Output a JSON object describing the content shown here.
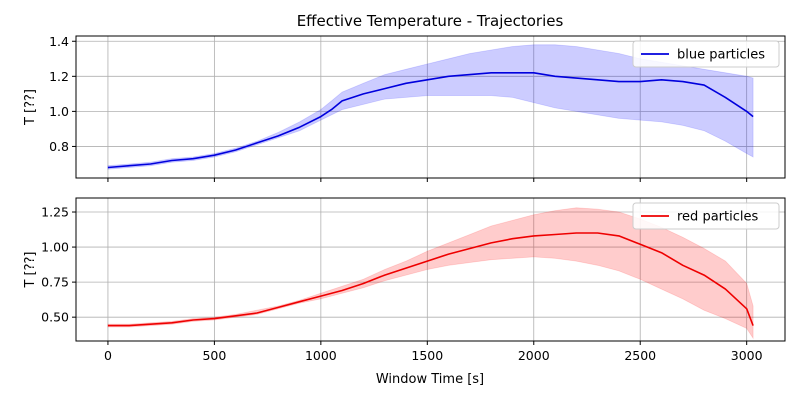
{
  "chart_data": {
    "title": "Effective Temperature - Trajectories",
    "xlabel": "Window Time [s]",
    "xlim": [
      -150,
      3180
    ],
    "xticks": [
      0,
      500,
      1000,
      1500,
      2000,
      2500,
      3000
    ],
    "grid": true,
    "panels": [
      {
        "type": "line",
        "ylabel": "T [??]",
        "ylim": [
          0.62,
          1.43
        ],
        "yticks": [
          0.8,
          1.0,
          1.2,
          1.4
        ],
        "ytick_labels": [
          "0.8",
          "1.0",
          "1.2",
          "1.4"
        ],
        "legend_position": "upper-right",
        "series": [
          {
            "name": "blue particles",
            "color": "#0000dd",
            "band_color": "#0000ff",
            "x": [
              0,
              100,
              200,
              300,
              400,
              500,
              600,
              700,
              800,
              900,
              1000,
              1050,
              1100,
              1200,
              1300,
              1400,
              1500,
              1600,
              1700,
              1800,
              1900,
              2000,
              2100,
              2200,
              2300,
              2400,
              2500,
              2600,
              2700,
              2800,
              2900,
              3000,
              3030
            ],
            "y": [
              0.68,
              0.69,
              0.7,
              0.72,
              0.73,
              0.75,
              0.78,
              0.82,
              0.86,
              0.91,
              0.97,
              1.01,
              1.06,
              1.1,
              1.13,
              1.16,
              1.18,
              1.2,
              1.21,
              1.22,
              1.22,
              1.22,
              1.2,
              1.19,
              1.18,
              1.17,
              1.17,
              1.18,
              1.17,
              1.15,
              1.08,
              1.0,
              0.97
            ],
            "lower": [
              0.67,
              0.68,
              0.69,
              0.71,
              0.72,
              0.74,
              0.77,
              0.81,
              0.85,
              0.89,
              0.95,
              0.98,
              1.01,
              1.04,
              1.07,
              1.08,
              1.09,
              1.09,
              1.09,
              1.09,
              1.08,
              1.05,
              1.02,
              1.0,
              0.98,
              0.96,
              0.95,
              0.94,
              0.92,
              0.89,
              0.83,
              0.76,
              0.74
            ],
            "upper": [
              0.69,
              0.7,
              0.71,
              0.73,
              0.74,
              0.76,
              0.79,
              0.83,
              0.88,
              0.94,
              1.01,
              1.06,
              1.11,
              1.16,
              1.21,
              1.24,
              1.27,
              1.3,
              1.33,
              1.35,
              1.37,
              1.38,
              1.38,
              1.37,
              1.35,
              1.33,
              1.3,
              1.28,
              1.26,
              1.24,
              1.22,
              1.2,
              1.19
            ]
          }
        ]
      },
      {
        "type": "line",
        "ylabel": "T [??]",
        "ylim": [
          0.33,
          1.35
        ],
        "yticks": [
          0.5,
          0.75,
          1.0,
          1.25
        ],
        "ytick_labels": [
          "0.50",
          "0.75",
          "1.00",
          "1.25"
        ],
        "legend_position": "upper-right",
        "series": [
          {
            "name": "red particles",
            "color": "#ee0000",
            "band_color": "#ff0000",
            "x": [
              0,
              100,
              200,
              300,
              400,
              500,
              600,
              700,
              800,
              900,
              1000,
              1100,
              1200,
              1300,
              1400,
              1500,
              1600,
              1700,
              1800,
              1900,
              2000,
              2100,
              2200,
              2300,
              2400,
              2500,
              2600,
              2700,
              2800,
              2900,
              3000,
              3030
            ],
            "y": [
              0.44,
              0.44,
              0.45,
              0.46,
              0.48,
              0.49,
              0.51,
              0.53,
              0.57,
              0.61,
              0.65,
              0.69,
              0.74,
              0.8,
              0.85,
              0.9,
              0.95,
              0.99,
              1.03,
              1.06,
              1.08,
              1.09,
              1.1,
              1.1,
              1.08,
              1.02,
              0.96,
              0.87,
              0.8,
              0.7,
              0.56,
              0.44
            ],
            "lower": [
              0.43,
              0.43,
              0.44,
              0.45,
              0.47,
              0.48,
              0.5,
              0.52,
              0.56,
              0.6,
              0.63,
              0.67,
              0.71,
              0.76,
              0.8,
              0.84,
              0.87,
              0.89,
              0.91,
              0.92,
              0.93,
              0.92,
              0.9,
              0.87,
              0.83,
              0.77,
              0.7,
              0.63,
              0.55,
              0.49,
              0.42,
              0.35
            ],
            "upper": [
              0.45,
              0.45,
              0.46,
              0.47,
              0.49,
              0.5,
              0.52,
              0.55,
              0.58,
              0.62,
              0.67,
              0.72,
              0.77,
              0.84,
              0.9,
              0.97,
              1.03,
              1.09,
              1.15,
              1.19,
              1.23,
              1.26,
              1.28,
              1.27,
              1.25,
              1.2,
              1.14,
              1.07,
              0.99,
              0.9,
              0.74,
              0.58
            ]
          }
        ]
      }
    ]
  }
}
